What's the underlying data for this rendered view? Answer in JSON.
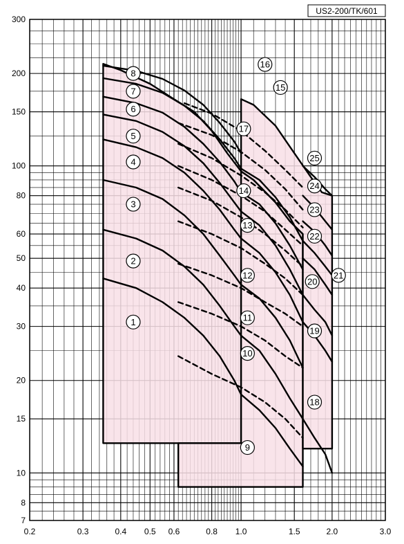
{
  "chart_data": {
    "type": "line",
    "title": "",
    "xlabel": "",
    "ylabel": "",
    "code_label": "US2-200/TK/601",
    "x_scale": "log",
    "y_scale": "log",
    "xlim": [
      0.2,
      3.0
    ],
    "ylim": [
      7,
      300
    ],
    "grid": true,
    "x_ticks": [
      {
        "value": 0.2,
        "label": "0.2"
      },
      {
        "value": 0.3,
        "label": "0.3"
      },
      {
        "value": 0.4,
        "label": "0.4"
      },
      {
        "value": 0.5,
        "label": "0.5"
      },
      {
        "value": 0.6,
        "label": "0.6"
      },
      {
        "value": 0.8,
        "label": "0.8"
      },
      {
        "value": 1.0,
        "label": "1.0"
      },
      {
        "value": 1.5,
        "label": "1.5"
      },
      {
        "value": 2.0,
        "label": "2.0"
      },
      {
        "value": 3.0,
        "label": "3.0"
      }
    ],
    "y_ticks": [
      {
        "value": 7,
        "label": "7"
      },
      {
        "value": 8,
        "label": "8"
      },
      {
        "value": 10,
        "label": "10"
      },
      {
        "value": 15,
        "label": "15"
      },
      {
        "value": 20,
        "label": "20"
      },
      {
        "value": 30,
        "label": "30"
      },
      {
        "value": 40,
        "label": "40"
      },
      {
        "value": 50,
        "label": "50"
      },
      {
        "value": 60,
        "label": "60"
      },
      {
        "value": 80,
        "label": "80"
      },
      {
        "value": 100,
        "label": "100"
      },
      {
        "value": 150,
        "label": "150"
      },
      {
        "value": 200,
        "label": "200"
      },
      {
        "value": 300,
        "label": "300"
      }
    ],
    "fill_color": "#f8dfe6",
    "line_color": "#000000",
    "regions": [
      {
        "points": [
          [
            0.35,
            12.5
          ],
          [
            0.35,
            215
          ],
          [
            0.4,
            205
          ],
          [
            0.5,
            185
          ],
          [
            0.6,
            165
          ],
          [
            0.7,
            150
          ],
          [
            0.8,
            130
          ],
          [
            0.9,
            110
          ],
          [
            1.0,
            96
          ],
          [
            1.0,
            12.5
          ]
        ]
      },
      {
        "points": [
          [
            0.62,
            9
          ],
          [
            0.62,
            12.5
          ],
          [
            1.0,
            12.5
          ],
          [
            1.0,
            96
          ],
          [
            1.1,
            90
          ],
          [
            1.3,
            76
          ],
          [
            1.45,
            66
          ],
          [
            1.6,
            60
          ],
          [
            1.6,
            9
          ]
        ]
      },
      {
        "points": [
          [
            1.0,
            96
          ],
          [
            1.0,
            165
          ],
          [
            1.1,
            158
          ],
          [
            1.3,
            135
          ],
          [
            1.5,
            110
          ],
          [
            1.7,
            92
          ],
          [
            1.85,
            82
          ],
          [
            2.0,
            80
          ],
          [
            2.0,
            12
          ],
          [
            1.6,
            12
          ],
          [
            1.6,
            60
          ],
          [
            1.45,
            66
          ],
          [
            1.3,
            76
          ],
          [
            1.1,
            90
          ]
        ]
      }
    ],
    "series": [
      {
        "name": "1",
        "style": "solid",
        "points": [
          [
            0.35,
            43
          ],
          [
            0.45,
            40
          ],
          [
            0.55,
            36
          ],
          [
            0.65,
            32
          ],
          [
            0.75,
            28
          ],
          [
            0.85,
            24
          ],
          [
            0.95,
            20
          ],
          [
            1.0,
            18
          ]
        ],
        "label_pos": [
          0.44,
          31
        ]
      },
      {
        "name": "2",
        "style": "solid",
        "points": [
          [
            0.35,
            62
          ],
          [
            0.45,
            58
          ],
          [
            0.55,
            53
          ],
          [
            0.65,
            47
          ],
          [
            0.75,
            41
          ],
          [
            0.85,
            35
          ],
          [
            0.95,
            30
          ],
          [
            1.0,
            28
          ]
        ],
        "label_pos": [
          0.44,
          49
        ]
      },
      {
        "name": "3",
        "style": "solid",
        "points": [
          [
            0.35,
            90
          ],
          [
            0.45,
            85
          ],
          [
            0.55,
            78
          ],
          [
            0.65,
            69
          ],
          [
            0.75,
            60
          ],
          [
            0.85,
            51
          ],
          [
            0.95,
            44
          ],
          [
            1.0,
            41
          ]
        ],
        "label_pos": [
          0.44,
          75
        ]
      },
      {
        "name": "4",
        "style": "solid",
        "points": [
          [
            0.35,
            122
          ],
          [
            0.45,
            115
          ],
          [
            0.55,
            106
          ],
          [
            0.65,
            95
          ],
          [
            0.75,
            83
          ],
          [
            0.85,
            72
          ],
          [
            0.95,
            62
          ],
          [
            1.0,
            58
          ]
        ],
        "label_pos": [
          0.44,
          103
        ]
      },
      {
        "name": "5",
        "style": "solid",
        "points": [
          [
            0.35,
            147
          ],
          [
            0.45,
            140
          ],
          [
            0.55,
            129
          ],
          [
            0.65,
            116
          ],
          [
            0.75,
            102
          ],
          [
            0.85,
            88
          ],
          [
            0.95,
            76
          ],
          [
            1.0,
            71
          ]
        ],
        "label_pos": [
          0.44,
          125
        ]
      },
      {
        "name": "6",
        "style": "solid",
        "points": [
          [
            0.35,
            168
          ],
          [
            0.45,
            160
          ],
          [
            0.55,
            149
          ],
          [
            0.65,
            134
          ],
          [
            0.75,
            118
          ],
          [
            0.85,
            103
          ],
          [
            0.95,
            89
          ],
          [
            1.0,
            82
          ]
        ],
        "label_pos": [
          0.44,
          153
        ]
      },
      {
        "name": "7",
        "style": "solid",
        "points": [
          [
            0.35,
            193
          ],
          [
            0.45,
            185
          ],
          [
            0.55,
            173
          ],
          [
            0.65,
            157
          ],
          [
            0.75,
            140
          ],
          [
            0.85,
            122
          ],
          [
            0.95,
            106
          ],
          [
            1.0,
            98
          ]
        ],
        "label_pos": [
          0.44,
          175
        ]
      },
      {
        "name": "8",
        "style": "solid",
        "points": [
          [
            0.35,
            212
          ],
          [
            0.45,
            204
          ],
          [
            0.55,
            192
          ],
          [
            0.65,
            176
          ],
          [
            0.75,
            158
          ],
          [
            0.85,
            138
          ],
          [
            0.95,
            120
          ],
          [
            1.0,
            110
          ]
        ],
        "label_pos": [
          0.44,
          200
        ]
      },
      {
        "name": "9",
        "style": "solid",
        "points": [
          [
            1.0,
            18
          ],
          [
            1.15,
            16
          ],
          [
            1.3,
            14
          ],
          [
            1.45,
            12
          ],
          [
            1.6,
            10.5
          ]
        ],
        "label_pos": [
          1.05,
          12.1
        ]
      },
      {
        "name": "10",
        "style": "solid",
        "points": [
          [
            1.0,
            28
          ],
          [
            1.15,
            25
          ],
          [
            1.3,
            21
          ],
          [
            1.45,
            17.5
          ],
          [
            1.6,
            15
          ]
        ],
        "label_pos": [
          1.05,
          24.5
        ]
      },
      {
        "name": "11",
        "style": "solid",
        "points": [
          [
            1.0,
            41
          ],
          [
            1.15,
            37
          ],
          [
            1.3,
            32
          ],
          [
            1.45,
            27
          ],
          [
            1.6,
            22
          ]
        ],
        "label_pos": [
          1.05,
          32
        ]
      },
      {
        "name": "12",
        "style": "solid",
        "points": [
          [
            1.0,
            58
          ],
          [
            1.15,
            52
          ],
          [
            1.3,
            45
          ],
          [
            1.45,
            38
          ],
          [
            1.6,
            31
          ]
        ],
        "label_pos": [
          1.05,
          44
        ]
      },
      {
        "name": "13",
        "style": "solid",
        "points": [
          [
            1.0,
            71
          ],
          [
            1.15,
            64
          ],
          [
            1.3,
            55
          ],
          [
            1.45,
            46
          ],
          [
            1.6,
            38
          ]
        ],
        "label_pos": [
          1.05,
          64
        ]
      },
      {
        "name": "14",
        "style": "solid",
        "points": [
          [
            1.0,
            82
          ],
          [
            1.15,
            75
          ],
          [
            1.3,
            65
          ],
          [
            1.45,
            55
          ],
          [
            1.6,
            46
          ]
        ],
        "label_pos": [
          1.02,
          83
        ]
      },
      {
        "name": "17",
        "style": "solid",
        "points": [
          [
            1.0,
            98
          ],
          [
            1.15,
            90
          ],
          [
            1.3,
            79
          ],
          [
            1.45,
            68
          ],
          [
            1.6,
            57
          ]
        ],
        "label_pos": [
          1.02,
          132
        ]
      },
      {
        "name": "18",
        "style": "solid",
        "points": [
          [
            1.6,
            15
          ],
          [
            1.75,
            13
          ],
          [
            1.9,
            11.5
          ],
          [
            2.0,
            10
          ]
        ],
        "label_pos": [
          1.75,
          17
        ]
      },
      {
        "name": "19",
        "style": "solid",
        "points": [
          [
            1.6,
            31
          ],
          [
            1.75,
            28
          ],
          [
            1.9,
            25
          ],
          [
            2.0,
            23
          ]
        ],
        "label_pos": [
          1.75,
          29
        ]
      },
      {
        "name": "20",
        "style": "solid",
        "points": [
          [
            1.6,
            38
          ],
          [
            1.75,
            34
          ],
          [
            1.9,
            31
          ],
          [
            2.0,
            28
          ]
        ],
        "label_pos": [
          1.72,
          42
        ]
      },
      {
        "name": "21",
        "style": "solid",
        "points": [
          [
            1.6,
            50
          ],
          [
            1.75,
            46
          ],
          [
            1.9,
            41
          ],
          [
            2.0,
            38
          ]
        ],
        "label_pos": [
          2.1,
          44
        ]
      },
      {
        "name": "22",
        "style": "solid",
        "points": [
          [
            1.6,
            57
          ],
          [
            1.75,
            52
          ],
          [
            1.9,
            47
          ],
          [
            2.0,
            44
          ]
        ],
        "label_pos": [
          1.75,
          59
        ]
      },
      {
        "name": "23",
        "style": "solid",
        "points": [
          [
            1.6,
            66
          ],
          [
            1.75,
            61
          ],
          [
            1.9,
            55
          ],
          [
            2.0,
            51
          ]
        ],
        "label_pos": [
          1.75,
          72
        ]
      },
      {
        "name": "24",
        "style": "solid",
        "points": [
          [
            1.6,
            80
          ],
          [
            1.75,
            73
          ],
          [
            1.9,
            66
          ],
          [
            2.0,
            62
          ]
        ],
        "label_pos": [
          1.75,
          86
        ]
      },
      {
        "name": "25",
        "style": "solid",
        "points": [
          [
            1.6,
            100
          ],
          [
            1.75,
            92
          ],
          [
            1.9,
            84
          ],
          [
            2.0,
            80
          ]
        ],
        "label_pos": [
          1.75,
          106
        ]
      },
      {
        "name": "15",
        "style": "dashed",
        "points": [
          [
            0.65,
            160
          ],
          [
            0.8,
            148
          ],
          [
            1.0,
            130
          ],
          [
            1.2,
            112
          ],
          [
            1.4,
            97
          ],
          [
            1.6,
            85
          ]
        ],
        "label_pos": [
          1.35,
          180
        ]
      },
      {
        "name": "16",
        "style": "dashed",
        "points": [
          [
            0.62,
            138
          ],
          [
            0.8,
            126
          ],
          [
            1.0,
            111
          ],
          [
            1.2,
            97
          ],
          [
            1.4,
            84
          ],
          [
            1.6,
            72
          ]
        ],
        "label_pos": [
          1.2,
          214
        ]
      },
      {
        "name": "",
        "style": "dashed",
        "points": [
          [
            0.62,
            118
          ],
          [
            0.8,
            106
          ],
          [
            1.0,
            93
          ],
          [
            1.2,
            82
          ],
          [
            1.4,
            72
          ],
          [
            1.6,
            63
          ]
        ]
      },
      {
        "name": "",
        "style": "dashed",
        "points": [
          [
            0.62,
            100
          ],
          [
            0.8,
            90
          ],
          [
            1.0,
            80
          ],
          [
            1.2,
            71
          ],
          [
            1.4,
            62
          ],
          [
            1.6,
            55
          ]
        ]
      },
      {
        "name": "",
        "style": "dashed",
        "points": [
          [
            0.62,
            85
          ],
          [
            0.8,
            77
          ],
          [
            1.0,
            68
          ],
          [
            1.2,
            60
          ],
          [
            1.4,
            53
          ],
          [
            1.6,
            47
          ]
        ]
      },
      {
        "name": "",
        "style": "dashed",
        "points": [
          [
            0.62,
            66
          ],
          [
            0.8,
            60
          ],
          [
            1.0,
            54
          ],
          [
            1.2,
            48
          ],
          [
            1.4,
            43
          ],
          [
            1.6,
            38
          ]
        ]
      },
      {
        "name": "",
        "style": "dashed",
        "points": [
          [
            0.62,
            48
          ],
          [
            0.8,
            44
          ],
          [
            1.0,
            40
          ],
          [
            1.2,
            36
          ],
          [
            1.4,
            33
          ],
          [
            1.6,
            30
          ]
        ]
      },
      {
        "name": "",
        "style": "dashed",
        "points": [
          [
            0.62,
            36
          ],
          [
            0.8,
            33
          ],
          [
            1.0,
            30
          ],
          [
            1.2,
            27
          ],
          [
            1.4,
            24
          ],
          [
            1.6,
            22
          ]
        ]
      },
      {
        "name": "",
        "style": "dashed",
        "points": [
          [
            0.62,
            24
          ],
          [
            0.8,
            21
          ],
          [
            1.0,
            19
          ],
          [
            1.2,
            17
          ],
          [
            1.4,
            15
          ],
          [
            1.6,
            13
          ]
        ]
      }
    ]
  }
}
